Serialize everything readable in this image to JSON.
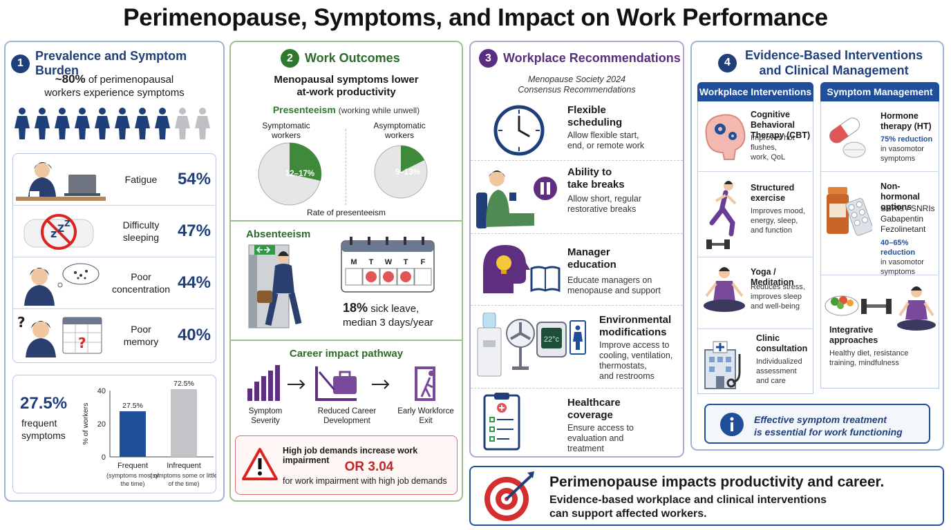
{
  "title": "Perimenopause, Symptoms, and Impact on Work Performance",
  "panel1": {
    "number": "1",
    "heading": "Prevalence and Symptom Burden",
    "prevalence_value": "~80%",
    "prevalence_text_1": "of perimenopausal",
    "prevalence_text_2": "workers experience symptoms",
    "symptoms": [
      {
        "label_1": "Fatigue",
        "label_2": "",
        "pct": "54%"
      },
      {
        "label_1": "Difficulty",
        "label_2": "sleeping",
        "pct": "47%"
      },
      {
        "label_1": "Poor",
        "label_2": "concentration",
        "pct": "44%"
      },
      {
        "label_1": "Poor",
        "label_2": "memory",
        "pct": "40%"
      }
    ],
    "frequent_pct": "27.5%",
    "frequent_label_1": "frequent",
    "frequent_label_2": "symptoms",
    "chart_data": {
      "type": "bar",
      "categories": [
        "Frequent",
        "Infrequent"
      ],
      "category_notes": [
        "(symptoms most of the time)",
        "(symptoms some or little of the time)"
      ],
      "values": [
        27.5,
        72.5
      ],
      "data_labels": [
        "27.5%",
        "72.5%"
      ],
      "ylabel": "% of workers",
      "yticks": [
        "0",
        "20",
        "40"
      ],
      "ylim": [
        0,
        40
      ],
      "colors": [
        "#1f4f99",
        "#c4c4c8"
      ]
    }
  },
  "panel2": {
    "number": "2",
    "heading": "Work Outcomes",
    "subtitle_1": "Menopausal symptoms lower",
    "subtitle_2": "at-work productivity",
    "presenteeism_title": "Presenteeism",
    "presenteeism_note": "(working while unwell)",
    "pie_symptomatic_label_1": "Symptomatic",
    "pie_symptomatic_label_2": "workers",
    "pie_symptomatic_value": "12–17%",
    "pie_asymptomatic_label_1": "Asymptomatic",
    "pie_asymptomatic_label_2": "workers",
    "pie_asymptomatic_value": "9–13%",
    "pie_caption": "Rate of presenteeism",
    "absenteeism_title": "Absenteeism",
    "calendar_days": [
      "M",
      "T",
      "W",
      "T",
      "F"
    ],
    "sick_leave_value": "18%",
    "sick_leave_text_1": "sick leave,",
    "sick_leave_text_2": "median 3 days/year",
    "career_title": "Career impact pathway",
    "career_steps": [
      {
        "label_1": "Symptom",
        "label_2": "Severity"
      },
      {
        "label_1": "Reduced Career",
        "label_2": "Development"
      },
      {
        "label_1": "Early Workforce",
        "label_2": "Exit"
      }
    ],
    "warning_line_1": "High job demands increase work impairment",
    "warning_value": "OR 3.04",
    "warning_line_2": "for work impairment with high job demands"
  },
  "panel3": {
    "number": "3",
    "heading": "Workplace Recommendations",
    "source_1": "Menopause Society 2024",
    "source_2": "Consensus Recommendations",
    "items": [
      {
        "title_1": "Flexible",
        "title_2": "scheduling",
        "desc_1": "Allow flexible start,",
        "desc_2": "end, or remote work",
        "desc_3": ""
      },
      {
        "title_1": "Ability to",
        "title_2": "take breaks",
        "desc_1": "Allow short, regular",
        "desc_2": "restorative breaks",
        "desc_3": ""
      },
      {
        "title_1": "Manager",
        "title_2": "education",
        "desc_1": "Educate managers on",
        "desc_2": "menopause and support",
        "desc_3": ""
      },
      {
        "title_1": "Environmental",
        "title_2": "modifications",
        "desc_1": "Improve access to",
        "desc_2": "cooling, ventilation,",
        "desc_3": "thermostats,",
        "desc_4": "and restrooms"
      },
      {
        "title_1": "Healthcare",
        "title_2": "coverage",
        "desc_1": "Ensure access to",
        "desc_2": "evaluation and",
        "desc_3": "treatment"
      }
    ],
    "thermostat_value": "22°c"
  },
  "panel4": {
    "number": "4",
    "heading_1": "Evidence-Based Interventions",
    "heading_2": "and Clinical Management",
    "col1_title": "Workplace Interventions",
    "col2_title": "Symptom Management",
    "workplace": [
      {
        "title_1": "Cognitive Behavioral",
        "title_2": "Therapy (CBT)",
        "desc_1": "Improves hot flushes,",
        "desc_2": "work, QoL",
        "desc_3": ""
      },
      {
        "title_1": "Structured",
        "title_2": "exercise",
        "desc_1": "Improves mood,",
        "desc_2": "energy, sleep,",
        "desc_3": "and function"
      },
      {
        "title_1": "Yoga / Meditation",
        "title_2": "",
        "desc_1": "Reduces stress,",
        "desc_2": "improves sleep",
        "desc_3": "and well-being"
      },
      {
        "title_1": "Clinic",
        "title_2": "consultation",
        "desc_1": "Individualized",
        "desc_2": "assessment",
        "desc_3": "and care"
      }
    ],
    "symptom_mgmt": [
      {
        "title_1": "Hormone",
        "title_2": "therapy (HT)",
        "highlight": "75% reduction",
        "desc_1": "in vasomotor",
        "desc_2": "symptoms"
      },
      {
        "title_1": "Non-hormonal",
        "title_2": "options",
        "list_1": "SSRIs / SNRIs",
        "list_2": "Gabapentin",
        "list_3": "Fezolinetant",
        "highlight": "40–65% reduction",
        "desc_1": "in vasomotor",
        "desc_2": "symptoms"
      },
      {
        "title_1": "Integrative",
        "title_2": "approaches",
        "desc_1": "Healthy diet, resistance",
        "desc_2": "training, mindfulness"
      }
    ],
    "info_1": "Effective symptom treatment",
    "info_2": "is essential for work functioning"
  },
  "banner": {
    "line_1": "Perimenopause impacts productivity and career.",
    "line_2": "Evidence-based workplace and clinical interventions",
    "line_3": "can support affected workers."
  }
}
